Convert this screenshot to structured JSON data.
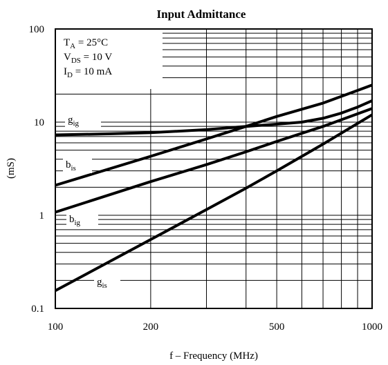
{
  "chart_data": {
    "type": "line",
    "title": "Input Admittance",
    "xlabel": "f – Frequency (MHz)",
    "ylabel": "(mS)",
    "x_scale": "log",
    "y_scale": "log",
    "xlim": [
      100,
      1000
    ],
    "ylim": [
      0.1,
      100
    ],
    "grid": true,
    "x_ticks": [
      {
        "value": 100,
        "label": "100"
      },
      {
        "value": 200,
        "label": "200"
      },
      {
        "value": 500,
        "label": "500"
      },
      {
        "value": 1000,
        "label": "1000"
      }
    ],
    "y_ticks": [
      {
        "value": 100,
        "label": "100"
      },
      {
        "value": 10,
        "label": "10"
      },
      {
        "value": 1,
        "label": "1"
      },
      {
        "value": 0.1,
        "label": "0.1"
      }
    ],
    "conditions": [
      {
        "main": "T",
        "sub": "A",
        "rest": " = 25°C"
      },
      {
        "main": "V",
        "sub": "DS",
        "rest": " = 10 V"
      },
      {
        "main": "I",
        "sub": "D",
        "rest": " = 10 mA"
      }
    ],
    "series": [
      {
        "name": "g_ig",
        "label_main": "g",
        "label_sub": "ig",
        "points": [
          [
            100,
            7.3
          ],
          [
            150,
            7.5
          ],
          [
            200,
            7.7
          ],
          [
            300,
            8.3
          ],
          [
            400,
            9.0
          ],
          [
            500,
            9.5
          ],
          [
            600,
            10.0
          ],
          [
            700,
            11.0
          ],
          [
            800,
            12.5
          ],
          [
            900,
            14.5
          ],
          [
            1000,
            17.0
          ]
        ]
      },
      {
        "name": "b_is",
        "label_main": "b",
        "label_sub": "is",
        "points": [
          [
            100,
            2.1
          ],
          [
            200,
            4.3
          ],
          [
            300,
            6.6
          ],
          [
            400,
            9.0
          ],
          [
            500,
            11.5
          ],
          [
            700,
            16.0
          ],
          [
            1000,
            25.0
          ]
        ]
      },
      {
        "name": "b_ig",
        "label_main": "b",
        "label_sub": "ig",
        "points": [
          [
            100,
            1.08
          ],
          [
            200,
            2.3
          ],
          [
            300,
            3.5
          ],
          [
            400,
            4.8
          ],
          [
            500,
            6.2
          ],
          [
            700,
            9.0
          ],
          [
            1000,
            14.0
          ]
        ]
      },
      {
        "name": "g_is",
        "label_main": "g",
        "label_sub": "is",
        "points": [
          [
            100,
            0.155
          ],
          [
            200,
            0.55
          ],
          [
            300,
            1.15
          ],
          [
            400,
            1.95
          ],
          [
            500,
            3.0
          ],
          [
            700,
            5.8
          ],
          [
            1000,
            12.0
          ]
        ]
      }
    ]
  }
}
